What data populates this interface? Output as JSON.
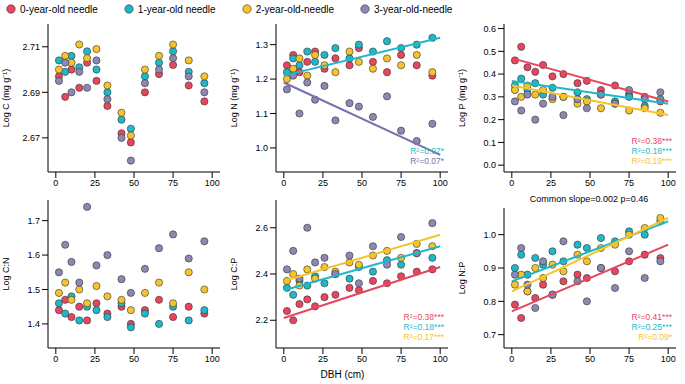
{
  "chart_data": [
    {
      "type": "scatter",
      "y_label": "Log C (mg g⁻¹)",
      "xlim": [
        -5,
        105
      ],
      "xticks": [
        0,
        25,
        50,
        75,
        100
      ],
      "ylim": [
        2.655,
        2.72
      ],
      "yticks": [
        2.67,
        2.69,
        2.71
      ],
      "x": [
        2,
        6,
        10,
        15,
        20,
        26,
        33,
        42,
        48,
        57,
        66,
        75,
        85,
        95
      ],
      "series": [
        {
          "name": "0-year-old needle",
          "color": "#e8455f",
          "values": [
            2.697,
            2.688,
            2.7,
            2.692,
            2.703,
            2.695,
            2.684,
            2.672,
            2.668,
            2.69,
            2.698,
            2.702,
            2.693,
            2.686
          ]
        },
        {
          "name": "1-year-old needle",
          "color": "#1fb8c8",
          "values": [
            2.704,
            2.699,
            2.706,
            2.701,
            2.708,
            2.7,
            2.69,
            2.678,
            2.674,
            2.697,
            2.703,
            2.708,
            2.699,
            2.694
          ]
        },
        {
          "name": "2-year-old-needle",
          "color": "#f5c42c",
          "values": [
            2.7,
            2.706,
            2.703,
            2.711,
            2.705,
            2.709,
            2.693,
            2.681,
            2.671,
            2.7,
            2.706,
            2.711,
            2.704,
            2.697
          ]
        },
        {
          "name": "3-year-old-needle",
          "color": "#8d88b3",
          "values": [
            2.695,
            2.703,
            2.69,
            2.699,
            2.692,
            2.704,
            2.687,
            2.67,
            2.66,
            2.694,
            2.7,
            2.705,
            2.697,
            2.69
          ]
        }
      ],
      "fits": [],
      "annotations": []
    },
    {
      "type": "scatter",
      "y_label": "Log N (mg g⁻¹)",
      "xlim": [
        -5,
        105
      ],
      "xticks": [
        0,
        25,
        50,
        75,
        100
      ],
      "ylim": [
        0.93,
        1.36
      ],
      "yticks": [
        {
          "value": 1,
          "label": "1.0"
        },
        1.1,
        1.2,
        1.3
      ],
      "x": [
        2,
        6,
        10,
        15,
        20,
        26,
        33,
        42,
        48,
        57,
        66,
        75,
        85,
        95
      ],
      "series": [
        {
          "name": "0-year-old needle",
          "color": "#e8455f",
          "values": [
            1.24,
            1.27,
            1.22,
            1.25,
            1.28,
            1.23,
            1.26,
            1.24,
            1.29,
            1.25,
            1.22,
            1.27,
            1.24,
            1.21
          ]
        },
        {
          "name": "1-year-old needle",
          "color": "#1fb8c8",
          "values": [
            1.22,
            1.26,
            1.24,
            1.28,
            1.25,
            1.27,
            1.29,
            1.26,
            1.3,
            1.28,
            1.31,
            1.29,
            1.3,
            1.32
          ]
        },
        {
          "name": "2-year-old-needle",
          "color": "#f5c42c",
          "values": [
            1.2,
            1.23,
            1.26,
            1.21,
            1.27,
            1.24,
            1.22,
            1.28,
            1.25,
            1.23,
            1.26,
            1.24,
            1.27,
            1.22
          ]
        },
        {
          "name": "3-year-old-needle",
          "color": "#8d88b3",
          "values": [
            1.17,
            1.21,
            1.1,
            1.19,
            1.14,
            1.18,
            1.08,
            1.13,
            1.12,
            1.09,
            1.15,
            1.05,
            1.02,
            1.07
          ]
        }
      ],
      "fits": [
        {
          "color": "#1fb8c8",
          "x": [
            0,
            100
          ],
          "values": [
            1.21,
            1.32
          ]
        },
        {
          "color": "#7a70b0",
          "x": [
            0,
            100
          ],
          "values": [
            1.19,
            0.98
          ]
        }
      ],
      "annotations": [
        {
          "text": "R²=0.07*",
          "color": "#1fb8c8"
        },
        {
          "text": "R²=0.07*",
          "color": "#7a70b0"
        }
      ]
    },
    {
      "type": "scatter",
      "y_label": "Log P (mg g⁻¹)",
      "xlim": [
        -5,
        105
      ],
      "xticks": [
        0,
        25,
        50,
        75,
        100
      ],
      "ylim": [
        -0.03,
        0.62
      ],
      "yticks": [
        {
          "value": 0,
          "label": "0.0"
        },
        0.1,
        0.2,
        0.3,
        0.4,
        0.5,
        0.6
      ],
      "x": [
        2,
        6,
        10,
        15,
        20,
        26,
        33,
        42,
        48,
        57,
        66,
        75,
        85,
        95
      ],
      "series": [
        {
          "name": "0-year-old needle",
          "color": "#e8455f",
          "values": [
            0.46,
            0.52,
            0.43,
            0.41,
            0.44,
            0.39,
            0.4,
            0.36,
            0.37,
            0.33,
            0.35,
            0.31,
            0.3,
            0.28
          ]
        },
        {
          "name": "1-year-old needle",
          "color": "#1fb8c8",
          "values": [
            0.35,
            0.38,
            0.33,
            0.36,
            0.31,
            0.34,
            0.3,
            0.32,
            0.29,
            0.31,
            0.28,
            0.3,
            0.26,
            0.29
          ]
        },
        {
          "name": "2-year-old-needle",
          "color": "#f5c42c",
          "values": [
            0.33,
            0.3,
            0.35,
            0.31,
            0.33,
            0.29,
            0.3,
            0.27,
            0.28,
            0.25,
            0.27,
            0.24,
            0.25,
            0.23
          ]
        },
        {
          "name": "3-year-old-needle",
          "color": "#8d88b3",
          "values": [
            0.28,
            0.24,
            0.31,
            0.2,
            0.27,
            0.3,
            0.22,
            0.29,
            0.25,
            0.31,
            0.27,
            0.33,
            0.29,
            0.32
          ]
        }
      ],
      "fits": [
        {
          "color": "#e8455f",
          "x": [
            0,
            100
          ],
          "values": [
            0.47,
            0.28
          ]
        },
        {
          "color": "#1fb8c8",
          "x": [
            0,
            100
          ],
          "values": [
            0.37,
            0.27
          ]
        },
        {
          "color": "#f5c42c",
          "x": [
            0,
            100
          ],
          "values": [
            0.35,
            0.22
          ]
        }
      ],
      "annotations": [
        {
          "text": "R²=0.38***",
          "color": "#e8455f"
        },
        {
          "text": "R²=0.18***",
          "color": "#1fb8c8"
        },
        {
          "text": "R²=0.19***",
          "color": "#f5c42c"
        }
      ]
    },
    {
      "type": "scatter",
      "y_label": "Log C:N",
      "xlim": [
        -5,
        105
      ],
      "xticks": [
        0,
        25,
        50,
        75,
        100
      ],
      "ylim": [
        1.33,
        1.76
      ],
      "yticks": [
        1.4,
        1.5,
        1.6,
        1.7
      ],
      "x": [
        2,
        6,
        10,
        15,
        20,
        26,
        33,
        42,
        48,
        57,
        66,
        75,
        85,
        95
      ],
      "series": [
        {
          "name": "0-year-old needle",
          "color": "#e8455f",
          "values": [
            1.44,
            1.47,
            1.42,
            1.45,
            1.41,
            1.46,
            1.43,
            1.45,
            1.4,
            1.44,
            1.47,
            1.42,
            1.45,
            1.43
          ]
        },
        {
          "name": "1-year-old needle",
          "color": "#1fb8c8",
          "values": [
            1.46,
            1.43,
            1.48,
            1.41,
            1.45,
            1.44,
            1.42,
            1.46,
            1.39,
            1.43,
            1.4,
            1.45,
            1.41,
            1.44
          ]
        },
        {
          "name": "2-year-old-needle",
          "color": "#f5c42c",
          "values": [
            1.49,
            1.52,
            1.47,
            1.5,
            1.46,
            1.51,
            1.48,
            1.47,
            1.44,
            1.49,
            1.52,
            1.46,
            1.55,
            1.5
          ]
        },
        {
          "name": "3-year-old-needle",
          "color": "#8d88b3",
          "values": [
            1.55,
            1.63,
            1.58,
            1.52,
            1.74,
            1.57,
            1.6,
            1.53,
            1.49,
            1.56,
            1.62,
            1.66,
            1.59,
            1.64
          ]
        }
      ],
      "fits": [],
      "annotations": []
    },
    {
      "type": "scatter",
      "y_label": "Log C:P",
      "x_label": "DBH (cm)",
      "xlim": [
        -5,
        105
      ],
      "xticks": [
        0,
        25,
        50,
        75,
        100
      ],
      "ylim": [
        2.08,
        2.72
      ],
      "yticks": [
        2.2,
        2.4,
        2.6
      ],
      "x": [
        2,
        6,
        10,
        15,
        20,
        26,
        33,
        42,
        48,
        57,
        66,
        75,
        85,
        95
      ],
      "series": [
        {
          "name": "0-year-old needle",
          "color": "#e8455f",
          "values": [
            2.24,
            2.2,
            2.27,
            2.29,
            2.26,
            2.3,
            2.31,
            2.34,
            2.33,
            2.37,
            2.36,
            2.39,
            2.41,
            2.42
          ]
        },
        {
          "name": "1-year-old needle",
          "color": "#1fb8c8",
          "values": [
            2.34,
            2.31,
            2.37,
            2.35,
            2.39,
            2.36,
            2.4,
            2.38,
            2.43,
            2.41,
            2.46,
            2.44,
            2.49,
            2.47
          ]
        },
        {
          "name": "2-year-old-needle",
          "color": "#f5c42c",
          "values": [
            2.37,
            2.4,
            2.35,
            2.42,
            2.38,
            2.43,
            2.41,
            2.45,
            2.44,
            2.48,
            2.5,
            2.47,
            2.53,
            2.52
          ]
        },
        {
          "name": "3-year-old-needle",
          "color": "#8d88b3",
          "values": [
            2.42,
            2.5,
            2.38,
            2.6,
            2.45,
            2.47,
            2.4,
            2.48,
            2.36,
            2.52,
            2.44,
            2.56,
            2.49,
            2.62
          ]
        }
      ],
      "fits": [
        {
          "color": "#e8455f",
          "x": [
            0,
            100
          ],
          "values": [
            2.21,
            2.43
          ]
        },
        {
          "color": "#1fb8c8",
          "x": [
            0,
            100
          ],
          "values": [
            2.33,
            2.52
          ]
        },
        {
          "color": "#f5c42c",
          "x": [
            0,
            100
          ],
          "values": [
            2.37,
            2.57
          ]
        }
      ],
      "annotations": [
        {
          "text": "R²=0.38***",
          "color": "#e8455f"
        },
        {
          "text": "R²=0.18***",
          "color": "#1fb8c8"
        },
        {
          "text": "R²=0.17***",
          "color": "#f5c42c"
        }
      ]
    },
    {
      "type": "scatter",
      "title": "Common slope=0.002 p=0.46",
      "y_label": "Log N:P",
      "xlim": [
        -5,
        105
      ],
      "xticks": [
        0,
        25,
        50,
        75,
        100
      ],
      "ylim": [
        0.66,
        1.08
      ],
      "yticks": [
        0.7,
        0.8,
        0.9,
        {
          "value": 1,
          "label": "1.0"
        }
      ],
      "x": [
        2,
        6,
        10,
        15,
        20,
        26,
        33,
        42,
        48,
        57,
        66,
        75,
        85,
        95
      ],
      "series": [
        {
          "name": "0-year-old needle",
          "color": "#e8455f",
          "values": [
            0.79,
            0.75,
            0.83,
            0.81,
            0.85,
            0.82,
            0.86,
            0.88,
            0.87,
            0.9,
            0.89,
            0.92,
            0.94,
            0.93
          ]
        },
        {
          "name": "1-year-old needle",
          "color": "#1fb8c8",
          "values": [
            0.9,
            0.94,
            0.88,
            0.93,
            0.91,
            0.95,
            0.92,
            0.97,
            0.96,
            0.99,
            0.98,
            1.01,
            1.0,
            1.04
          ]
        },
        {
          "name": "2-year-old-needle",
          "color": "#f5c42c",
          "values": [
            0.85,
            0.88,
            0.83,
            0.9,
            0.87,
            0.91,
            0.89,
            0.94,
            0.92,
            0.96,
            0.97,
            1.0,
            1.02,
            1.05
          ]
        },
        {
          "name": "3-year-old-needle",
          "color": "#8d88b3",
          "values": [
            0.88,
            0.96,
            0.85,
            0.78,
            0.92,
            0.82,
            0.98,
            0.86,
            0.8,
            0.9,
            0.84,
            0.95,
            0.87,
            0.92
          ]
        }
      ],
      "fits": [
        {
          "color": "#e8455f",
          "x": [
            0,
            100
          ],
          "values": [
            0.77,
            0.97
          ]
        },
        {
          "color": "#1fb8c8",
          "x": [
            0,
            100
          ],
          "values": [
            0.86,
            1.04
          ]
        },
        {
          "color": "#f5c42c",
          "x": [
            0,
            100
          ],
          "values": [
            0.83,
            1.05
          ]
        }
      ],
      "annotations": [
        {
          "text": "R²=0.41***",
          "color": "#e8455f"
        },
        {
          "text": "R²=0.25***",
          "color": "#1fb8c8"
        },
        {
          "text": "R²=0.09*",
          "color": "#f5c42c"
        }
      ]
    }
  ]
}
